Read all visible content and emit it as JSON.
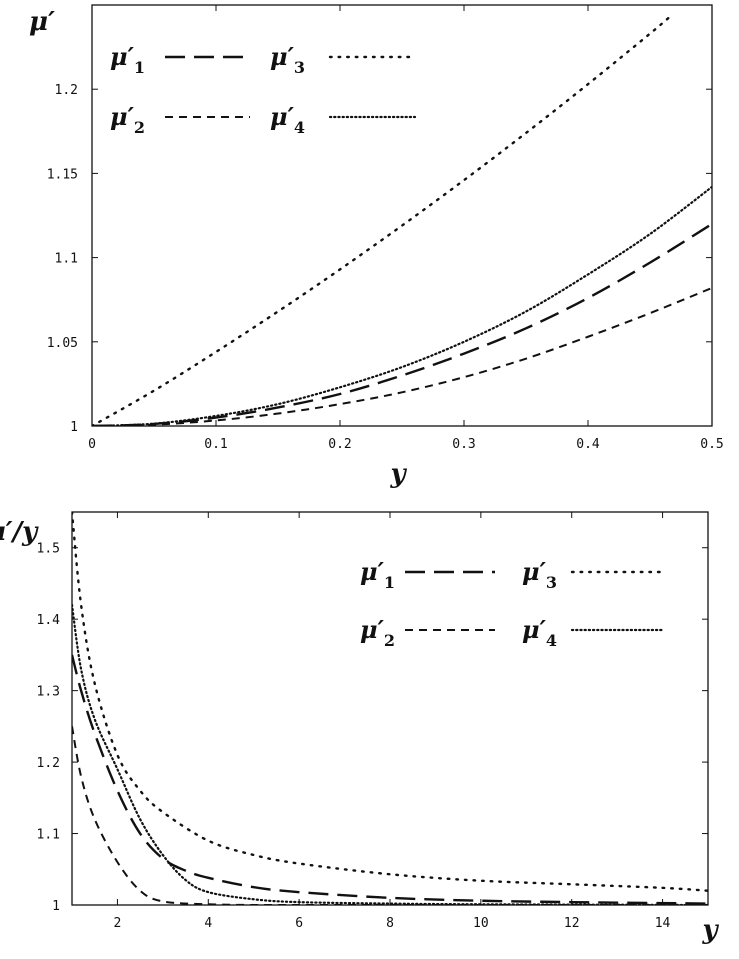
{
  "chart_data": [
    {
      "type": "line",
      "xlabel": "y",
      "ylabel": "μ′",
      "xlim": [
        0,
        0.5
      ],
      "ylim": [
        1,
        1.25
      ],
      "xticks": [
        "0",
        "0.1",
        "0.2",
        "0.3",
        "0.4",
        "0.5"
      ],
      "yticks": [
        "1",
        "1.05",
        "1.1",
        "1.15",
        "1.2"
      ],
      "grid": false,
      "legend_position": "top-left",
      "series": [
        {
          "name": "μ′1",
          "dash": "long-dash",
          "x": [
            0,
            0.05,
            0.1,
            0.15,
            0.2,
            0.25,
            0.3,
            0.35,
            0.4,
            0.45,
            0.5
          ],
          "y": [
            1.0,
            1.0012,
            1.005,
            1.011,
            1.019,
            1.03,
            1.043,
            1.058,
            1.076,
            1.097,
            1.12
          ]
        },
        {
          "name": "μ′2",
          "dash": "short-dash",
          "x": [
            0,
            0.05,
            0.1,
            0.15,
            0.2,
            0.25,
            0.3,
            0.35,
            0.4,
            0.45,
            0.5
          ],
          "y": [
            1.0,
            1.0008,
            1.0033,
            1.0074,
            1.013,
            1.02,
            1.029,
            1.04,
            1.053,
            1.067,
            1.082
          ]
        },
        {
          "name": "μ′3",
          "dash": "sparse-dot",
          "x": [
            0,
            0.05,
            0.1,
            0.15,
            0.2,
            0.25,
            0.3,
            0.35,
            0.4,
            0.45,
            0.466
          ],
          "y": [
            1.0,
            1.021,
            1.044,
            1.068,
            1.093,
            1.119,
            1.146,
            1.174,
            1.203,
            1.233,
            1.243
          ]
        },
        {
          "name": "μ′4",
          "dash": "dense-dot",
          "x": [
            0,
            0.05,
            0.1,
            0.15,
            0.2,
            0.25,
            0.3,
            0.35,
            0.4,
            0.45,
            0.5
          ],
          "y": [
            1.0,
            1.0014,
            1.006,
            1.013,
            1.023,
            1.035,
            1.05,
            1.068,
            1.09,
            1.114,
            1.142
          ]
        }
      ]
    },
    {
      "type": "line",
      "xlabel": "y",
      "ylabel": "μ′/y",
      "xlim": [
        1,
        15
      ],
      "ylim": [
        1,
        1.55
      ],
      "xticks": [
        "2",
        "4",
        "6",
        "8",
        "10",
        "12",
        "14"
      ],
      "yticks": [
        "1",
        "1.1",
        "1.2",
        "1.3",
        "1.4",
        "1.5"
      ],
      "grid": false,
      "legend_position": "top-right",
      "series": [
        {
          "name": "μ′1",
          "dash": "long-dash",
          "x": [
            1,
            1.2,
            1.5,
            2,
            2.5,
            3,
            3.5,
            4,
            5,
            6,
            8,
            10,
            12,
            15
          ],
          "y": [
            1.35,
            1.3,
            1.24,
            1.16,
            1.1,
            1.065,
            1.048,
            1.038,
            1.025,
            1.018,
            1.01,
            1.006,
            1.004,
            1.002
          ]
        },
        {
          "name": "μ′2",
          "dash": "short-dash",
          "x": [
            1,
            1.2,
            1.5,
            2,
            2.5,
            3,
            4,
            5,
            6,
            8,
            10,
            15
          ],
          "y": [
            1.25,
            1.18,
            1.12,
            1.06,
            1.02,
            1.005,
            1.001,
            1.0,
            1.0,
            1.0,
            1.0,
            1.0
          ]
        },
        {
          "name": "μ′3",
          "dash": "sparse-dot",
          "x": [
            1,
            1.2,
            1.5,
            2,
            2.5,
            3,
            4,
            5,
            6,
            8,
            10,
            12,
            14,
            15
          ],
          "y": [
            1.55,
            1.42,
            1.31,
            1.21,
            1.16,
            1.13,
            1.09,
            1.07,
            1.058,
            1.043,
            1.034,
            1.029,
            1.024,
            1.02
          ]
        },
        {
          "name": "μ′4",
          "dash": "dense-dot",
          "x": [
            1,
            1.2,
            1.5,
            2,
            2.5,
            3,
            3.5,
            4,
            5,
            6,
            8,
            10,
            15
          ],
          "y": [
            1.42,
            1.33,
            1.26,
            1.19,
            1.12,
            1.07,
            1.035,
            1.018,
            1.008,
            1.004,
            1.002,
            1.001,
            1.0
          ]
        }
      ]
    }
  ]
}
